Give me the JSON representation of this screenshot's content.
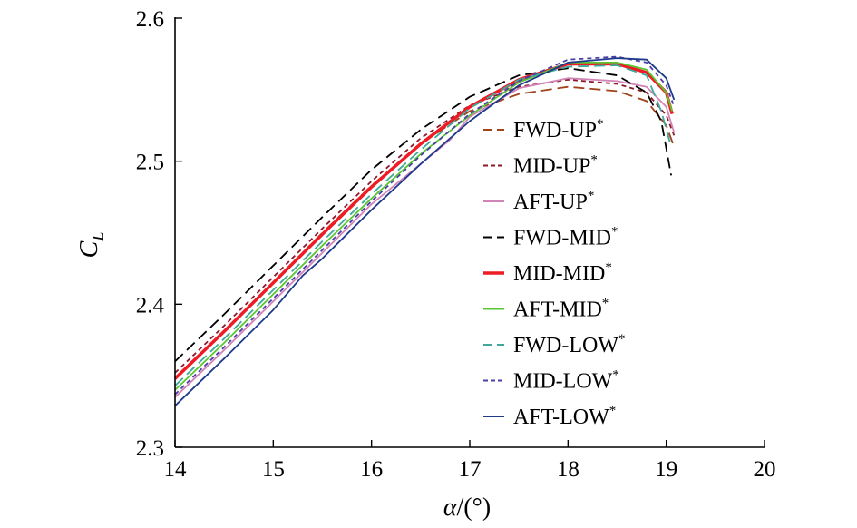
{
  "chart_data": {
    "type": "line",
    "title": "",
    "xlabel_symbol": "α",
    "xlabel_unit": "/(°)",
    "ylabel_main": "C",
    "ylabel_sub": "L",
    "xlim": [
      14,
      20
    ],
    "ylim": [
      2.3,
      2.6
    ],
    "xticks": [
      14,
      15,
      16,
      17,
      18,
      19,
      20
    ],
    "yticks": [
      2.3,
      2.4,
      2.5,
      2.6
    ],
    "xtick_labels": [
      "14",
      "15",
      "16",
      "17",
      "18",
      "19",
      "20"
    ],
    "ytick_labels": [
      "2.3",
      "2.4",
      "2.5",
      "2.6"
    ],
    "legend_position": "lower-right",
    "legend_superscript": "*",
    "series": [
      {
        "name": "FWD-UP",
        "color": "#a0421b",
        "dash": "long-dash",
        "points": [
          [
            14,
            2.348
          ],
          [
            14.5,
            2.381
          ],
          [
            15,
            2.415
          ],
          [
            15.5,
            2.45
          ],
          [
            16,
            2.483
          ],
          [
            16.5,
            2.512
          ],
          [
            17,
            2.535
          ],
          [
            17.5,
            2.547
          ],
          [
            18,
            2.552
          ],
          [
            18.5,
            2.549
          ],
          [
            18.8,
            2.542
          ],
          [
            19,
            2.525
          ],
          [
            19.08,
            2.51
          ]
        ]
      },
      {
        "name": "MID-UP",
        "color": "#8b1a2b",
        "dash": "short-dash",
        "points": [
          [
            14,
            2.352
          ],
          [
            14.5,
            2.385
          ],
          [
            15,
            2.419
          ],
          [
            15.5,
            2.453
          ],
          [
            16,
            2.486
          ],
          [
            16.5,
            2.516
          ],
          [
            17,
            2.539
          ],
          [
            17.5,
            2.552
          ],
          [
            18,
            2.557
          ],
          [
            18.5,
            2.554
          ],
          [
            18.8,
            2.548
          ],
          [
            19,
            2.532
          ],
          [
            19.08,
            2.518
          ]
        ]
      },
      {
        "name": "AFT-UP",
        "color": "#d184b8",
        "dash": "solid",
        "points": [
          [
            14,
            2.335
          ],
          [
            14.5,
            2.368
          ],
          [
            15,
            2.402
          ],
          [
            15.5,
            2.436
          ],
          [
            16,
            2.47
          ],
          [
            16.5,
            2.498
          ],
          [
            16.8,
            2.515
          ],
          [
            17,
            2.531
          ],
          [
            17.5,
            2.551
          ],
          [
            18,
            2.558
          ],
          [
            18.5,
            2.556
          ],
          [
            18.8,
            2.552
          ],
          [
            19,
            2.538
          ],
          [
            19.08,
            2.52
          ]
        ]
      },
      {
        "name": "FWD-MID",
        "color": "#000000",
        "dash": "long-dash",
        "points": [
          [
            14,
            2.36
          ],
          [
            14.5,
            2.393
          ],
          [
            15,
            2.427
          ],
          [
            15.5,
            2.461
          ],
          [
            16,
            2.494
          ],
          [
            16.5,
            2.522
          ],
          [
            17,
            2.545
          ],
          [
            17.5,
            2.56
          ],
          [
            18,
            2.565
          ],
          [
            18.5,
            2.56
          ],
          [
            18.8,
            2.548
          ],
          [
            18.95,
            2.528
          ],
          [
            19.05,
            2.49
          ]
        ]
      },
      {
        "name": "MID-MID",
        "color": "#ee1c25",
        "dash": "solid",
        "width": 3.5,
        "points": [
          [
            14,
            2.348
          ],
          [
            14.5,
            2.381
          ],
          [
            15,
            2.415
          ],
          [
            15.5,
            2.449
          ],
          [
            16,
            2.482
          ],
          [
            16.5,
            2.512
          ],
          [
            17,
            2.538
          ],
          [
            17.5,
            2.557
          ],
          [
            18,
            2.568
          ],
          [
            18.5,
            2.568
          ],
          [
            18.8,
            2.562
          ],
          [
            19,
            2.548
          ],
          [
            19.06,
            2.533
          ]
        ]
      },
      {
        "name": "AFT-MID",
        "color": "#5ac732",
        "dash": "solid",
        "points": [
          [
            14,
            2.34
          ],
          [
            14.5,
            2.373
          ],
          [
            15,
            2.407
          ],
          [
            15.5,
            2.441
          ],
          [
            16,
            2.474
          ],
          [
            16.5,
            2.505
          ],
          [
            17,
            2.532
          ],
          [
            17.5,
            2.555
          ],
          [
            18,
            2.569
          ],
          [
            18.5,
            2.569
          ],
          [
            18.8,
            2.564
          ],
          [
            19,
            2.548
          ],
          [
            19.06,
            2.535
          ]
        ]
      },
      {
        "name": "FWD-LOW",
        "color": "#3ea99a",
        "dash": "long-dash",
        "points": [
          [
            14,
            2.343
          ],
          [
            14.5,
            2.376
          ],
          [
            15,
            2.41
          ],
          [
            15.5,
            2.444
          ],
          [
            16,
            2.477
          ],
          [
            16.5,
            2.508
          ],
          [
            17,
            2.537
          ],
          [
            17.5,
            2.557
          ],
          [
            18,
            2.566
          ],
          [
            18.5,
            2.567
          ],
          [
            18.8,
            2.56
          ],
          [
            18.95,
            2.535
          ],
          [
            19.05,
            2.51
          ]
        ]
      },
      {
        "name": "MID-LOW",
        "color": "#4a3fa8",
        "dash": "short-dash",
        "points": [
          [
            14,
            2.337
          ],
          [
            14.5,
            2.37
          ],
          [
            15,
            2.404
          ],
          [
            15.5,
            2.438
          ],
          [
            16,
            2.472
          ],
          [
            16.5,
            2.504
          ],
          [
            17,
            2.533
          ],
          [
            17.5,
            2.556
          ],
          [
            18,
            2.571
          ],
          [
            18.5,
            2.573
          ],
          [
            18.8,
            2.569
          ],
          [
            19,
            2.553
          ],
          [
            19.07,
            2.54
          ]
        ]
      },
      {
        "name": "AFT-LOW",
        "color": "#1e3a8a",
        "dash": "solid",
        "points": [
          [
            14,
            2.329
          ],
          [
            14.5,
            2.362
          ],
          [
            15,
            2.396
          ],
          [
            15.3,
            2.42
          ],
          [
            15.5,
            2.432
          ],
          [
            16,
            2.466
          ],
          [
            16.5,
            2.498
          ],
          [
            17,
            2.528
          ],
          [
            17.5,
            2.553
          ],
          [
            18,
            2.569
          ],
          [
            18.5,
            2.572
          ],
          [
            18.8,
            2.571
          ],
          [
            19,
            2.558
          ],
          [
            19.08,
            2.543
          ]
        ]
      }
    ]
  }
}
